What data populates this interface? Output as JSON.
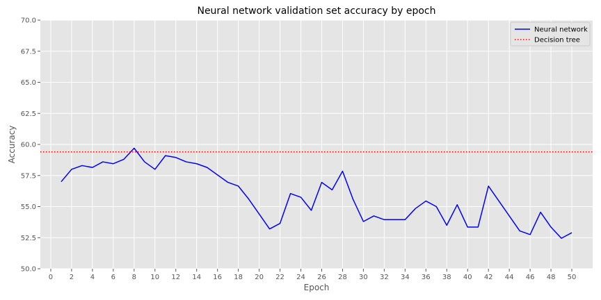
{
  "chart_data": {
    "type": "line",
    "title": "Neural network validation set accuracy by epoch",
    "xlabel": "Epoch",
    "ylabel": "Accuracy",
    "xlim": [
      -1,
      52
    ],
    "ylim": [
      50,
      70
    ],
    "xticks": [
      0,
      2,
      4,
      6,
      8,
      10,
      12,
      14,
      16,
      18,
      20,
      22,
      24,
      26,
      28,
      30,
      32,
      34,
      36,
      38,
      40,
      42,
      44,
      46,
      48,
      50
    ],
    "yticks": [
      50.0,
      52.5,
      55.0,
      57.5,
      60.0,
      62.5,
      65.0,
      67.5,
      70.0
    ],
    "ytick_labels": [
      "50.0",
      "52.5",
      "55.0",
      "57.5",
      "60.0",
      "62.5",
      "65.0",
      "67.5",
      "70.0"
    ],
    "grid": true,
    "legend_position": "top-right",
    "colors": {
      "plot_background": "#e5e5e5",
      "grid": "#ffffff",
      "neural": "#0000ff",
      "tree": "#ff0000"
    },
    "series": [
      {
        "name": "Neural network",
        "style": "solid",
        "color": "#0000ff",
        "x": [
          1,
          2,
          3,
          4,
          5,
          6,
          7,
          8,
          9,
          10,
          11,
          12,
          13,
          14,
          15,
          16,
          17,
          18,
          19,
          20,
          21,
          22,
          23,
          24,
          25,
          26,
          27,
          28,
          29,
          30,
          31,
          32,
          33,
          34,
          35,
          36,
          37,
          38,
          39,
          40,
          41,
          42,
          43,
          44,
          45,
          46,
          47,
          48,
          49,
          50
        ],
        "values": [
          57.0,
          58.0,
          58.3,
          58.15,
          58.6,
          58.45,
          58.8,
          59.7,
          58.6,
          58.0,
          59.1,
          58.95,
          58.6,
          58.45,
          58.15,
          57.55,
          56.95,
          56.65,
          55.6,
          54.4,
          53.2,
          53.65,
          56.05,
          55.75,
          54.7,
          56.95,
          56.35,
          57.85,
          55.6,
          53.8,
          54.25,
          53.95,
          53.95,
          53.95,
          54.85,
          55.45,
          55.0,
          53.5,
          55.15,
          53.35,
          53.35,
          56.65,
          55.45,
          54.25,
          53.05,
          52.75,
          54.55,
          53.35,
          52.45,
          52.9
        ]
      },
      {
        "name": "Decision tree",
        "style": "dotted",
        "color": "#ff0000",
        "constant": 59.4
      }
    ]
  }
}
